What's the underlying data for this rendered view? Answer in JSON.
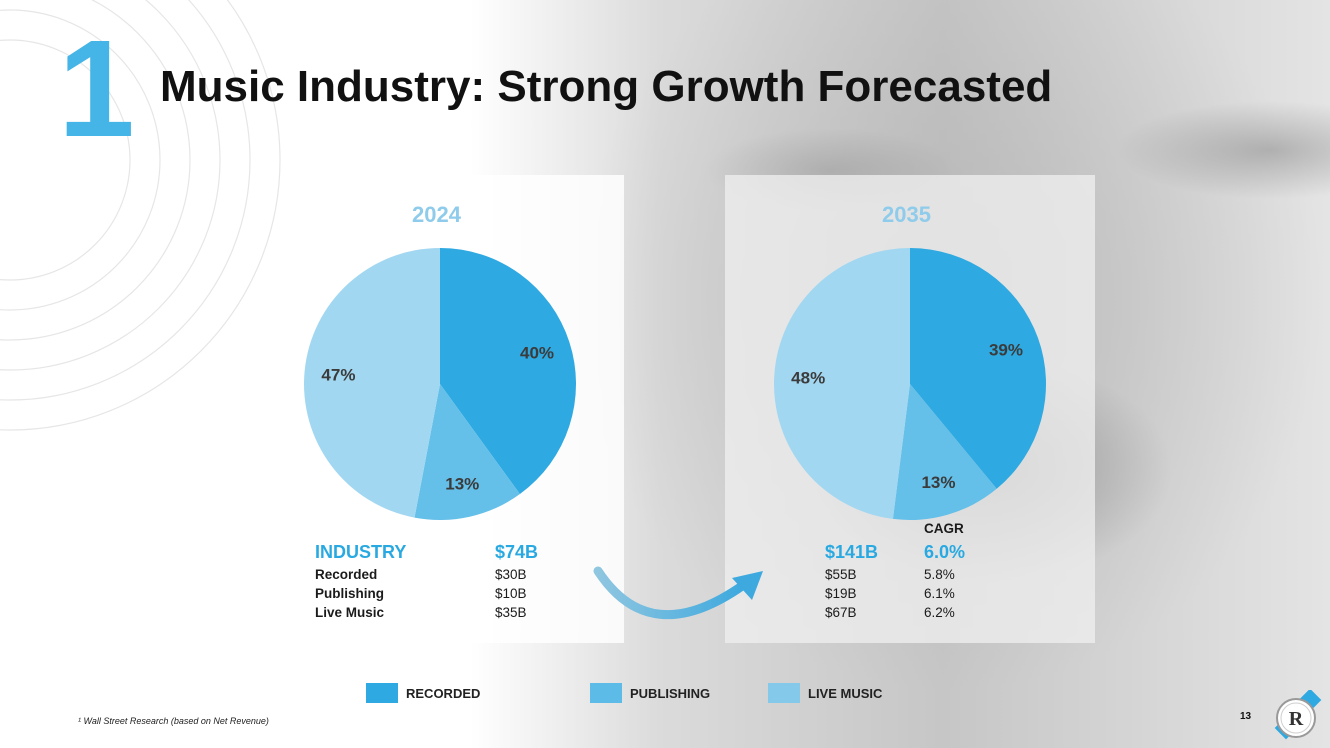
{
  "slide": {
    "big_number": "1",
    "title": "Music Industry: Strong Growth Forecasted",
    "footnote": "¹ Wall Street Research (based on Net Revenue)",
    "page_number": "13",
    "logo_letter": "R"
  },
  "chart_data": [
    {
      "type": "pie",
      "title": "2024",
      "categories": [
        "Recorded",
        "Publishing",
        "Live Music"
      ],
      "values": [
        40,
        13,
        47
      ],
      "labels": [
        "40%",
        "13%",
        "47%"
      ],
      "colors": [
        "#2ea9e1",
        "#64bfe9",
        "#a2d7f1"
      ]
    },
    {
      "type": "pie",
      "title": "2035",
      "categories": [
        "Recorded",
        "Publishing",
        "Live Music"
      ],
      "values": [
        39,
        13,
        48
      ],
      "labels": [
        "39%",
        "13%",
        "48%"
      ],
      "colors": [
        "#2ea9e1",
        "#64bfe9",
        "#a2d7f1"
      ]
    }
  ],
  "table": {
    "industry_label": "INDUSTRY",
    "total_2024": "$74B",
    "total_2035": "$141B",
    "cagr_header": "CAGR",
    "total_cagr": "6.0%",
    "rows": [
      {
        "label": "Recorded",
        "v2024": "$30B",
        "v2035": "$55B",
        "cagr": "5.8%"
      },
      {
        "label": "Publishing",
        "v2024": "$10B",
        "v2035": "$19B",
        "cagr": "6.1%"
      },
      {
        "label": "Live Music",
        "v2024": "$35B",
        "v2035": "$67B",
        "cagr": "6.2%"
      }
    ]
  },
  "legend": [
    {
      "label": "RECORDED",
      "color": "#2ea9e1"
    },
    {
      "label": "PUBLISHING",
      "color": "#5cbbe7"
    },
    {
      "label": "LIVE MUSIC",
      "color": "#84c8ea"
    }
  ]
}
